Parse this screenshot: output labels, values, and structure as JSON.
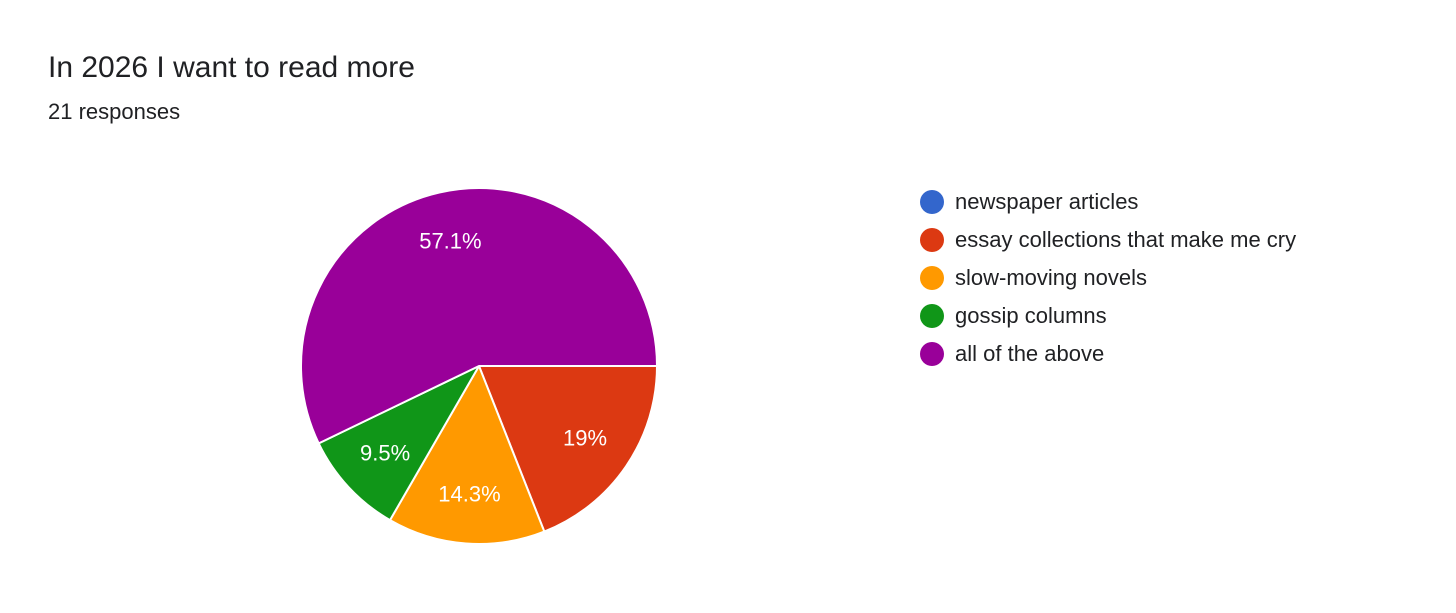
{
  "header": {
    "title": "In 2026 I want to read more",
    "responses": "21 responses"
  },
  "chart_data": {
    "type": "pie",
    "title": "In 2026 I want to read more",
    "subtitle": "21 responses",
    "legend_position": "right",
    "slices": [
      {
        "label": "newspaper articles",
        "value": 0,
        "percent_label": "",
        "color": "#3366cc"
      },
      {
        "label": "essay collections that make me cry",
        "value": 19,
        "percent_label": "19%",
        "color": "#dc3912"
      },
      {
        "label": "slow-moving novels",
        "value": 14.3,
        "percent_label": "14.3%",
        "color": "#ff9900"
      },
      {
        "label": "gossip columns",
        "value": 9.5,
        "percent_label": "9.5%",
        "color": "#109618"
      },
      {
        "label": "all of the above",
        "value": 57.1,
        "percent_label": "57.1%",
        "color": "#990099"
      }
    ]
  }
}
